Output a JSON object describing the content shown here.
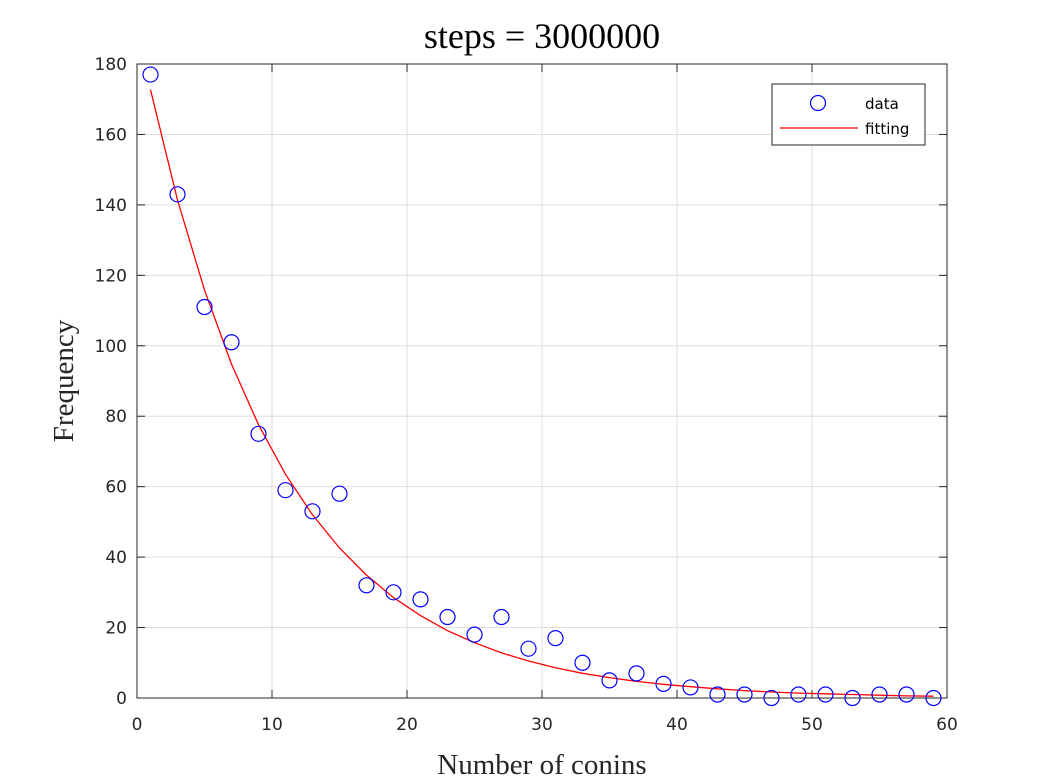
{
  "chart_data": {
    "type": "scatter",
    "title": "steps = 3000000",
    "xlabel": "Number of conins",
    "ylabel": "Frequency",
    "xlim": [
      0,
      60
    ],
    "ylim": [
      0,
      180
    ],
    "xticks": [
      0,
      10,
      20,
      30,
      40,
      50,
      60
    ],
    "yticks": [
      0,
      20,
      40,
      60,
      80,
      100,
      120,
      140,
      160,
      180
    ],
    "grid": true,
    "legend_position": "top-right",
    "series": [
      {
        "name": "data",
        "type": "scatter",
        "marker": "circle",
        "color": "#0000ff",
        "x": [
          1,
          3,
          5,
          7,
          9,
          11,
          13,
          15,
          17,
          19,
          21,
          23,
          25,
          27,
          29,
          31,
          33,
          35,
          37,
          39,
          41,
          43,
          45,
          47,
          49,
          51,
          53,
          55,
          57,
          59
        ],
        "y": [
          177,
          143,
          111,
          101,
          75,
          59,
          53,
          58,
          32,
          30,
          28,
          23,
          18,
          23,
          14,
          17,
          10,
          5,
          7,
          4,
          3,
          1,
          1,
          0,
          1,
          1,
          0,
          1,
          1,
          0
        ]
      },
      {
        "name": "fitting",
        "type": "line",
        "color": "#ff0000",
        "x": [
          1,
          3,
          5,
          7,
          9,
          11,
          13,
          15,
          17,
          19,
          21,
          23,
          25,
          27,
          29,
          31,
          33,
          35,
          37,
          39,
          41,
          43,
          45,
          47,
          49,
          51,
          53,
          55,
          57,
          59
        ],
        "y": [
          172.7,
          141.4,
          115.8,
          94.8,
          77.6,
          63.5,
          52.0,
          42.6,
          34.9,
          28.5,
          23.4,
          19.1,
          15.7,
          12.8,
          10.5,
          8.6,
          7.0,
          5.8,
          4.7,
          3.9,
          3.2,
          2.6,
          2.1,
          1.7,
          1.4,
          1.2,
          1.0,
          0.8,
          0.6,
          0.5
        ]
      }
    ]
  }
}
